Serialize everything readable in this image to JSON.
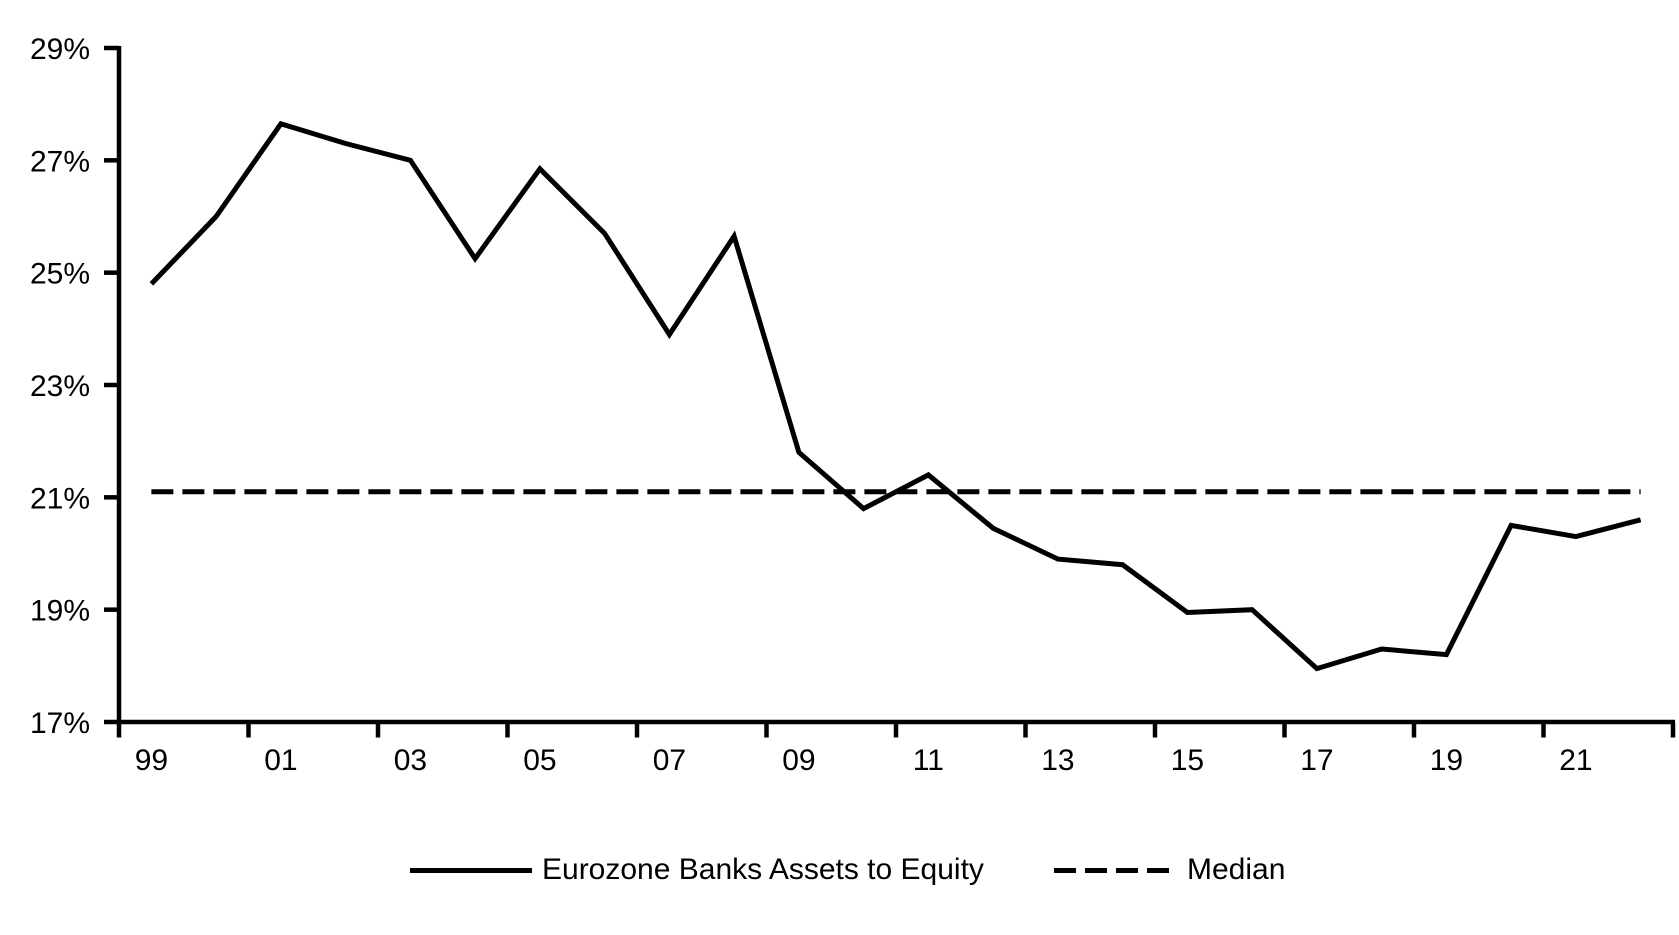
{
  "chart_data": {
    "type": "line",
    "title": "",
    "xlabel": "",
    "ylabel": "",
    "x": [
      1999,
      2000,
      2001,
      2002,
      2003,
      2004,
      2005,
      2006,
      2007,
      2008,
      2009,
      2010,
      2011,
      2012,
      2013,
      2014,
      2015,
      2016,
      2017,
      2018,
      2019,
      2020,
      2021,
      2022
    ],
    "x_tick_labels": [
      "99",
      "01",
      "03",
      "05",
      "07",
      "09",
      "11",
      "13",
      "15",
      "17",
      "19",
      "21"
    ],
    "y_ticks": [
      {
        "value": 17,
        "label": "17%"
      },
      {
        "value": 19,
        "label": "19%"
      },
      {
        "value": 21,
        "label": "21%"
      },
      {
        "value": 23,
        "label": "23%"
      },
      {
        "value": 25,
        "label": "25%"
      },
      {
        "value": 27,
        "label": "27%"
      },
      {
        "value": 29,
        "label": "29%"
      }
    ],
    "ylim": [
      17,
      29
    ],
    "grid": false,
    "background_color": "#ffffff",
    "axis_color": "#000000",
    "legend_position": "bottom",
    "series": [
      {
        "name": "Eurozone Banks Assets to Equity",
        "style": "solid",
        "color": "#000000",
        "values": [
          24.8,
          26.0,
          27.65,
          27.3,
          27.0,
          25.25,
          26.85,
          25.7,
          23.9,
          25.65,
          21.8,
          20.8,
          21.4,
          20.45,
          19.9,
          19.8,
          18.95,
          19.0,
          17.95,
          18.3,
          18.2,
          20.5,
          20.3,
          20.6
        ]
      },
      {
        "name": "Median",
        "style": "dashed",
        "color": "#000000",
        "value": 21.1
      }
    ]
  }
}
